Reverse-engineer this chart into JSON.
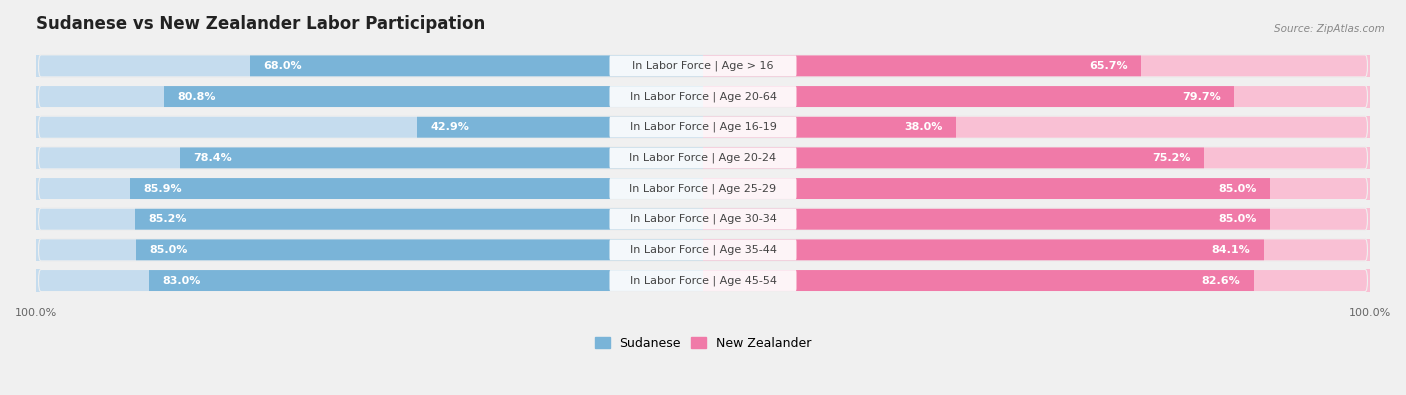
{
  "title": "Sudanese vs New Zealander Labor Participation",
  "source": "Source: ZipAtlas.com",
  "categories": [
    "In Labor Force | Age > 16",
    "In Labor Force | Age 20-64",
    "In Labor Force | Age 16-19",
    "In Labor Force | Age 20-24",
    "In Labor Force | Age 25-29",
    "In Labor Force | Age 30-34",
    "In Labor Force | Age 35-44",
    "In Labor Force | Age 45-54"
  ],
  "sudanese": [
    68.0,
    80.8,
    42.9,
    78.4,
    85.9,
    85.2,
    85.0,
    83.0
  ],
  "new_zealander": [
    65.7,
    79.7,
    38.0,
    75.2,
    85.0,
    85.0,
    84.1,
    82.6
  ],
  "sudanese_color": "#7ab4d8",
  "sudanese_light_color": "#c5dcee",
  "new_zealander_color": "#f07aa8",
  "new_zealander_light_color": "#f9c0d4",
  "background_color": "#f0f0f0",
  "row_bg_color": "#ffffff",
  "max_val": 100.0,
  "title_fontsize": 12,
  "label_fontsize": 8,
  "value_fontsize": 8,
  "legend_fontsize": 9,
  "axis_fontsize": 8
}
